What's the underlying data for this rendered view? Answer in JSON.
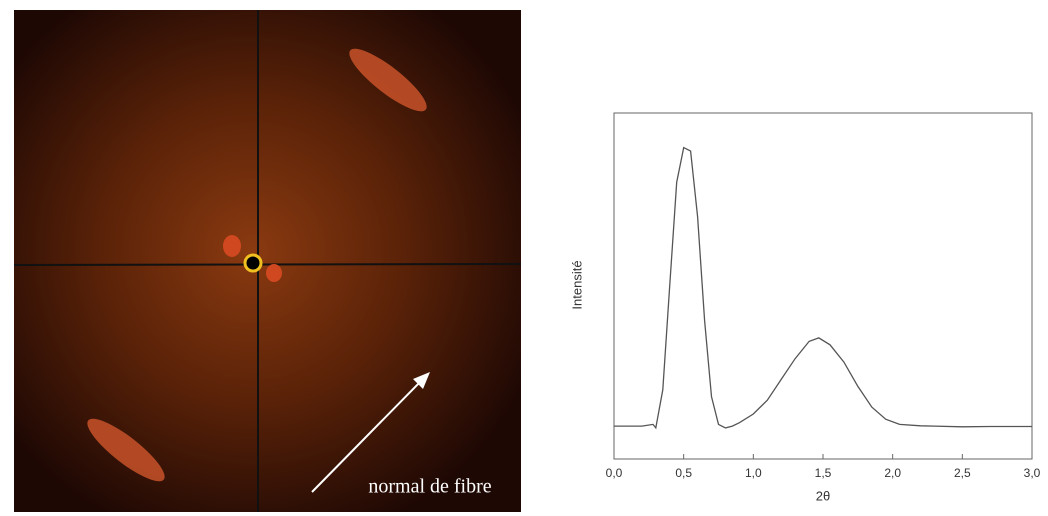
{
  "image": {
    "annotation": "normal de fibre"
  },
  "chart_data": {
    "type": "line",
    "xlabel": "2θ",
    "ylabel": "Intensité",
    "x": [
      0.0,
      0.2,
      0.28,
      0.3,
      0.35,
      0.4,
      0.45,
      0.5,
      0.55,
      0.6,
      0.65,
      0.7,
      0.75,
      0.8,
      0.85,
      0.9,
      1.0,
      1.1,
      1.2,
      1.3,
      1.4,
      1.47,
      1.55,
      1.65,
      1.75,
      1.85,
      1.95,
      2.05,
      2.2,
      2.3,
      2.5,
      2.7,
      3.0
    ],
    "values": [
      9.5,
      9.5,
      10,
      9,
      20,
      50,
      80,
      90,
      89,
      70,
      40,
      18,
      10,
      9,
      9.5,
      10.5,
      13,
      17,
      23,
      29,
      34,
      35,
      33,
      28,
      21,
      15,
      11.5,
      10,
      9.6,
      9.5,
      9.3,
      9.4,
      9.4
    ],
    "color": "#555555",
    "xlim": [
      0,
      3
    ],
    "ylim": [
      0,
      100
    ],
    "xticks": [
      {
        "value": 0,
        "label": "0,0"
      },
      {
        "value": 0.5,
        "label": "0,5"
      },
      {
        "value": 1,
        "label": "1,0"
      },
      {
        "value": 1.5,
        "label": "1,5"
      },
      {
        "value": 2,
        "label": "2,0"
      },
      {
        "value": 2.5,
        "label": "2,5"
      },
      {
        "value": 3,
        "label": "3,0"
      }
    ]
  }
}
